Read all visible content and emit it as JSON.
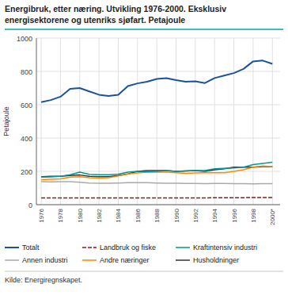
{
  "chart_data": {
    "type": "line",
    "title": "Energibruk, etter næring. Utvikling 1976-2000. Eksklusiv",
    "subtitle": "energisektorene og utenriks sjøfart. Petajoule",
    "y_label": "Petajoule",
    "annotations": [
      "Kilde: Energiregnskapet."
    ],
    "x": [
      1976,
      1977,
      1978,
      1979,
      1980,
      1981,
      1982,
      1983,
      1984,
      1985,
      1986,
      1987,
      1988,
      1989,
      1990,
      1991,
      1992,
      1993,
      1994,
      1995,
      1996,
      1997,
      1998,
      1999,
      2000
    ],
    "series": [
      {
        "name": "Totalt",
        "color": "#1a52a0",
        "values": [
          615,
          628,
          648,
          695,
          700,
          680,
          660,
          652,
          660,
          712,
          728,
          738,
          755,
          760,
          748,
          738,
          740,
          730,
          760,
          775,
          790,
          815,
          860,
          865,
          845
        ]
      },
      {
        "name": "Landbruk og fiske",
        "color": "#8b1a1a",
        "line_style": "dashed",
        "values": [
          40,
          40,
          40,
          40,
          40,
          40,
          40,
          40,
          40,
          40,
          40,
          40,
          40,
          40,
          40,
          40,
          40,
          40,
          42,
          42,
          42,
          42,
          43,
          43,
          43
        ]
      },
      {
        "name": "Kraftintensiv industri",
        "color": "#009999",
        "values": [
          165,
          167,
          170,
          180,
          195,
          182,
          180,
          180,
          183,
          195,
          200,
          198,
          200,
          205,
          200,
          202,
          205,
          205,
          215,
          218,
          220,
          225,
          240,
          248,
          255
        ]
      },
      {
        "name": "Annen industri",
        "color": "#aaaaaa",
        "values": [
          138,
          137,
          138,
          138,
          135,
          130,
          128,
          128,
          130,
          132,
          132,
          132,
          130,
          128,
          128,
          127,
          127,
          126,
          127,
          127,
          126,
          126,
          125,
          126,
          126
        ]
      },
      {
        "name": "Andre næringer",
        "color": "#ff8800",
        "values": [
          150,
          152,
          155,
          165,
          168,
          162,
          160,
          162,
          172,
          185,
          190,
          195,
          195,
          195,
          192,
          188,
          190,
          192,
          192,
          192,
          200,
          210,
          225,
          232,
          228
        ]
      },
      {
        "name": "Husholdninger",
        "color": "#333333",
        "values": [
          168,
          170,
          170,
          175,
          178,
          170,
          168,
          168,
          175,
          185,
          200,
          205,
          205,
          205,
          200,
          202,
          205,
          200,
          210,
          215,
          225,
          225,
          225,
          228,
          228
        ]
      }
    ],
    "xlim": [
      1975.5,
      2000.8
    ],
    "xticks": [
      1976,
      1978,
      1980,
      1982,
      1984,
      1986,
      1988,
      1990,
      1992,
      1994,
      1996,
      1998,
      {
        "value": 2000,
        "label": "2000*"
      }
    ],
    "ylim": [
      0,
      1000
    ],
    "yticks": [
      0,
      200,
      400,
      600,
      800,
      1000
    ],
    "grid": true,
    "legend": "bottom"
  }
}
